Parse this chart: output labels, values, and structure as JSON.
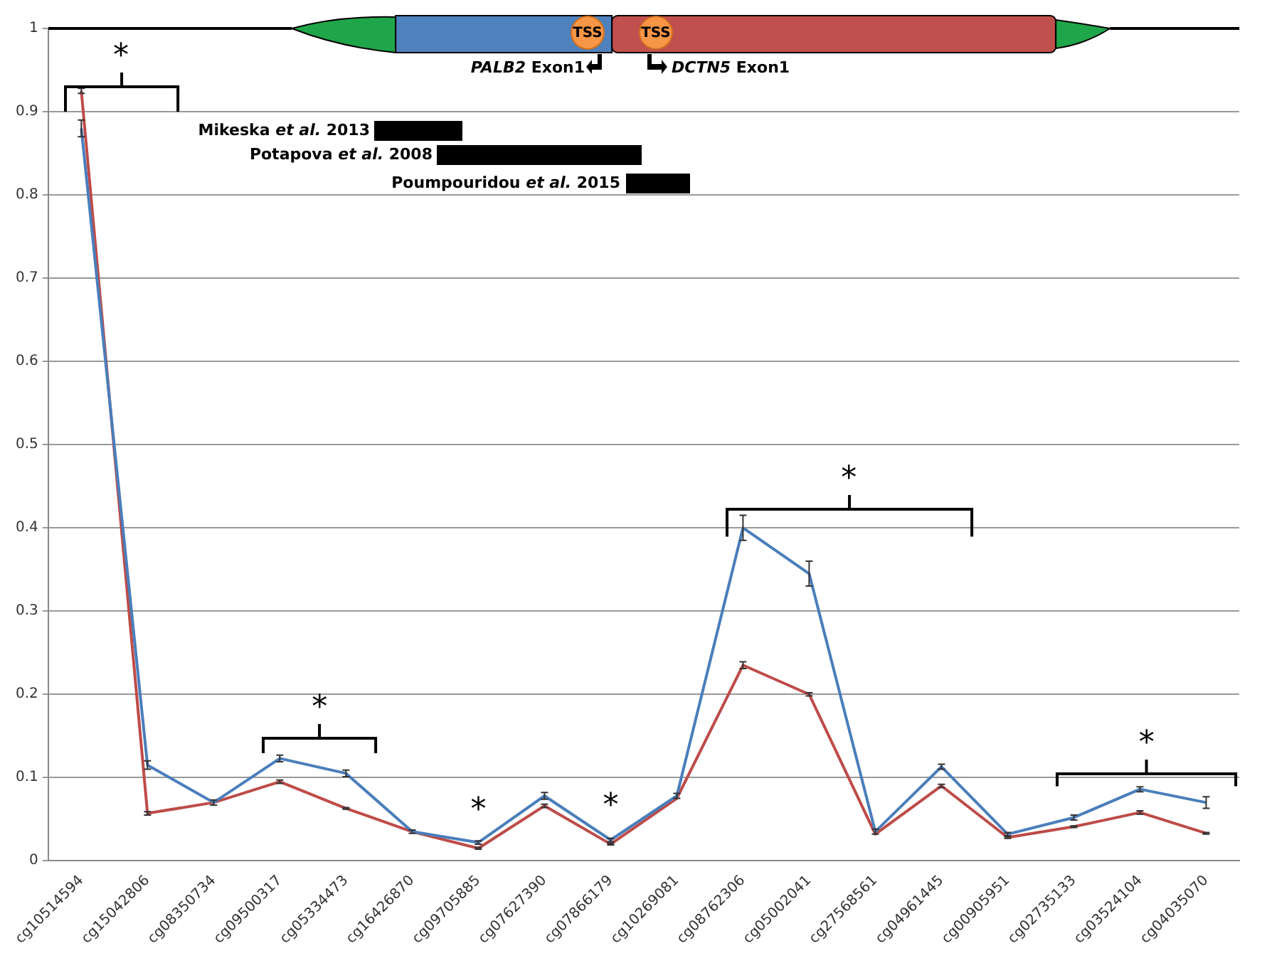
{
  "chart_data": {
    "type": "line",
    "categories": [
      "cg10514594",
      "cg15042806",
      "cg08350734",
      "cg09500317",
      "cg05334473",
      "cg16426870",
      "cg09705885",
      "cg07627390",
      "cg07866179",
      "cg10269081",
      "cg08762306",
      "cg05002041",
      "cg27568561",
      "cg04961445",
      "cg00905951",
      "cg02735133",
      "cg03524104",
      "cg04035070"
    ],
    "series": [
      {
        "color": "#4a7ebb",
        "values": [
          0.88,
          0.115,
          0.07,
          0.123,
          0.105,
          0.035,
          0.022,
          0.078,
          0.025,
          0.078,
          0.4,
          0.345,
          0.035,
          0.113,
          0.032,
          0.052,
          0.086,
          0.07
        ],
        "errors": [
          0.01,
          0.005,
          0.003,
          0.004,
          0.004,
          0.002,
          0.002,
          0.004,
          0.002,
          0.003,
          0.015,
          0.015,
          0.003,
          0.003,
          0.002,
          0.003,
          0.003,
          0.007
        ]
      },
      {
        "color": "#be4b48",
        "values": [
          0.925,
          0.057,
          0.07,
          0.095,
          0.063,
          0.035,
          0.015,
          0.066,
          0.02,
          0.075,
          0.235,
          0.2,
          0.032,
          0.09,
          0.028,
          0.041,
          0.058,
          0.033
        ],
        "errors": [
          0.003,
          0.002,
          null,
          0.002,
          0.001,
          null,
          0.001,
          0.002,
          0.001,
          null,
          0.004,
          0.002,
          null,
          0.002,
          0.001,
          0.001,
          0.002,
          0.001
        ]
      }
    ],
    "ylim": [
      0,
      1
    ],
    "yticks": [
      0,
      0.1,
      0.2,
      0.3,
      0.4,
      0.5,
      0.6,
      0.7,
      0.8,
      0.9,
      1
    ],
    "grid": "y",
    "legend": false,
    "line_style": "solid",
    "annotations": [
      "TSS",
      "TSS",
      "PALB2 Exon1",
      "DCTN5 Exon1",
      "Mikeska et al. 2013",
      "Potapova et al. 2008",
      "Poumpouridou et al. 2015",
      "*",
      "*",
      "*",
      "*",
      "*",
      "*"
    ]
  }
}
